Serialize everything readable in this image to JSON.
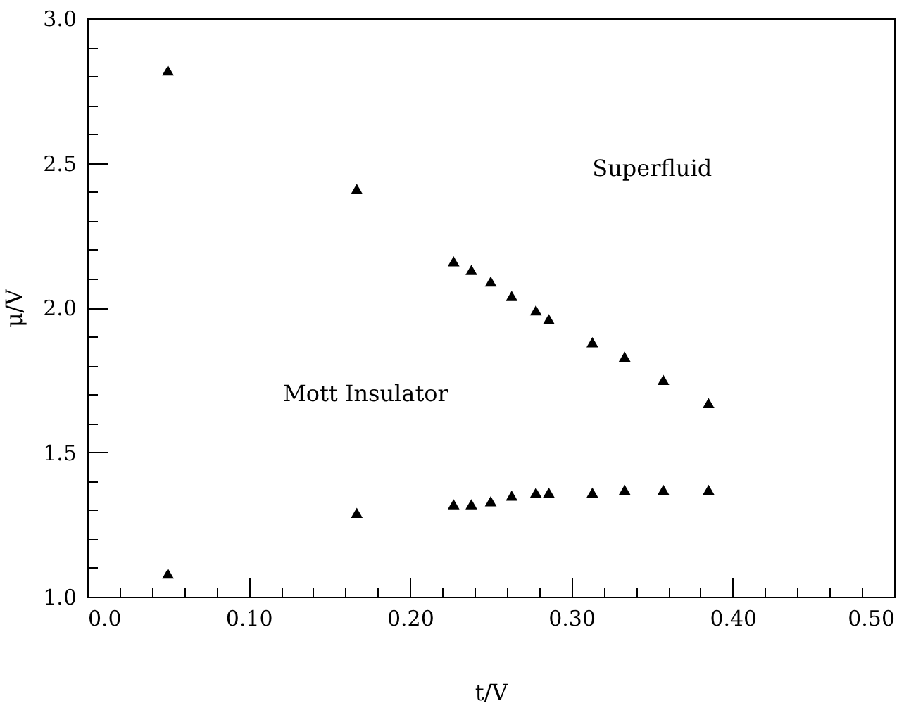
{
  "chart_data": {
    "type": "scatter",
    "xlabel": "t/V",
    "ylabel": "μ/V",
    "marker": "triangle",
    "annotations": [
      "Superfluid",
      "Mott Insulator"
    ],
    "xlim": [
      0,
      0.5
    ],
    "ylim": [
      1,
      3
    ],
    "xticks": [
      {
        "value": 0,
        "label": "0.0"
      },
      {
        "value": 0.02,
        "label": null
      },
      {
        "value": 0.04,
        "label": null
      },
      {
        "value": 0.06,
        "label": null
      },
      {
        "value": 0.08,
        "label": null
      },
      {
        "value": 0.1,
        "label": "0.10"
      },
      {
        "value": 0.12,
        "label": null
      },
      {
        "value": 0.14,
        "label": null
      },
      {
        "value": 0.16,
        "label": null
      },
      {
        "value": 0.18,
        "label": null
      },
      {
        "value": 0.2,
        "label": "0.20"
      },
      {
        "value": 0.22,
        "label": null
      },
      {
        "value": 0.24,
        "label": null
      },
      {
        "value": 0.26,
        "label": null
      },
      {
        "value": 0.28,
        "label": null
      },
      {
        "value": 0.3,
        "label": "0.30"
      },
      {
        "value": 0.32,
        "label": null
      },
      {
        "value": 0.34,
        "label": null
      },
      {
        "value": 0.36,
        "label": null
      },
      {
        "value": 0.38,
        "label": null
      },
      {
        "value": 0.4,
        "label": "0.40"
      },
      {
        "value": 0.42,
        "label": null
      },
      {
        "value": 0.44,
        "label": null
      },
      {
        "value": 0.46,
        "label": null
      },
      {
        "value": 0.48,
        "label": null
      },
      {
        "value": 0.5,
        "label": "0.50"
      }
    ],
    "yticks": [
      {
        "value": 1,
        "label": "1.0"
      },
      {
        "value": 1.1,
        "label": null
      },
      {
        "value": 1.2,
        "label": null
      },
      {
        "value": 1.3,
        "label": null
      },
      {
        "value": 1.4,
        "label": null
      },
      {
        "value": 1.5,
        "label": "1.5"
      },
      {
        "value": 1.6,
        "label": null
      },
      {
        "value": 1.7,
        "label": null
      },
      {
        "value": 1.8,
        "label": null
      },
      {
        "value": 1.9,
        "label": null
      },
      {
        "value": 2,
        "label": "2.0"
      },
      {
        "value": 2.1,
        "label": null
      },
      {
        "value": 2.2,
        "label": null
      },
      {
        "value": 2.3,
        "label": null
      },
      {
        "value": 2.4,
        "label": null
      },
      {
        "value": 2.5,
        "label": "2.5"
      },
      {
        "value": 2.6,
        "label": null
      },
      {
        "value": 2.7,
        "label": null
      },
      {
        "value": 2.8,
        "label": null
      },
      {
        "value": 2.9,
        "label": null
      },
      {
        "value": 3,
        "label": "3.0"
      }
    ],
    "series": [
      {
        "color": "#000000",
        "x": [
          0.05,
          0.167,
          0.227,
          0.238,
          0.25,
          0.263,
          0.278,
          0.286,
          0.313,
          0.333,
          0.357,
          0.385
        ],
        "values": [
          2.82,
          2.41,
          2.16,
          2.13,
          2.09,
          2.04,
          1.99,
          1.96,
          1.88,
          1.83,
          1.75,
          1.67
        ]
      },
      {
        "color": "#000000",
        "x": [
          0.05,
          0.167,
          0.227,
          0.238,
          0.25,
          0.263,
          0.278,
          0.286,
          0.313,
          0.333,
          0.357,
          0.385
        ],
        "values": [
          1.08,
          1.29,
          1.32,
          1.32,
          1.33,
          1.35,
          1.36,
          1.36,
          1.36,
          1.37,
          1.37,
          1.37
        ]
      }
    ]
  }
}
